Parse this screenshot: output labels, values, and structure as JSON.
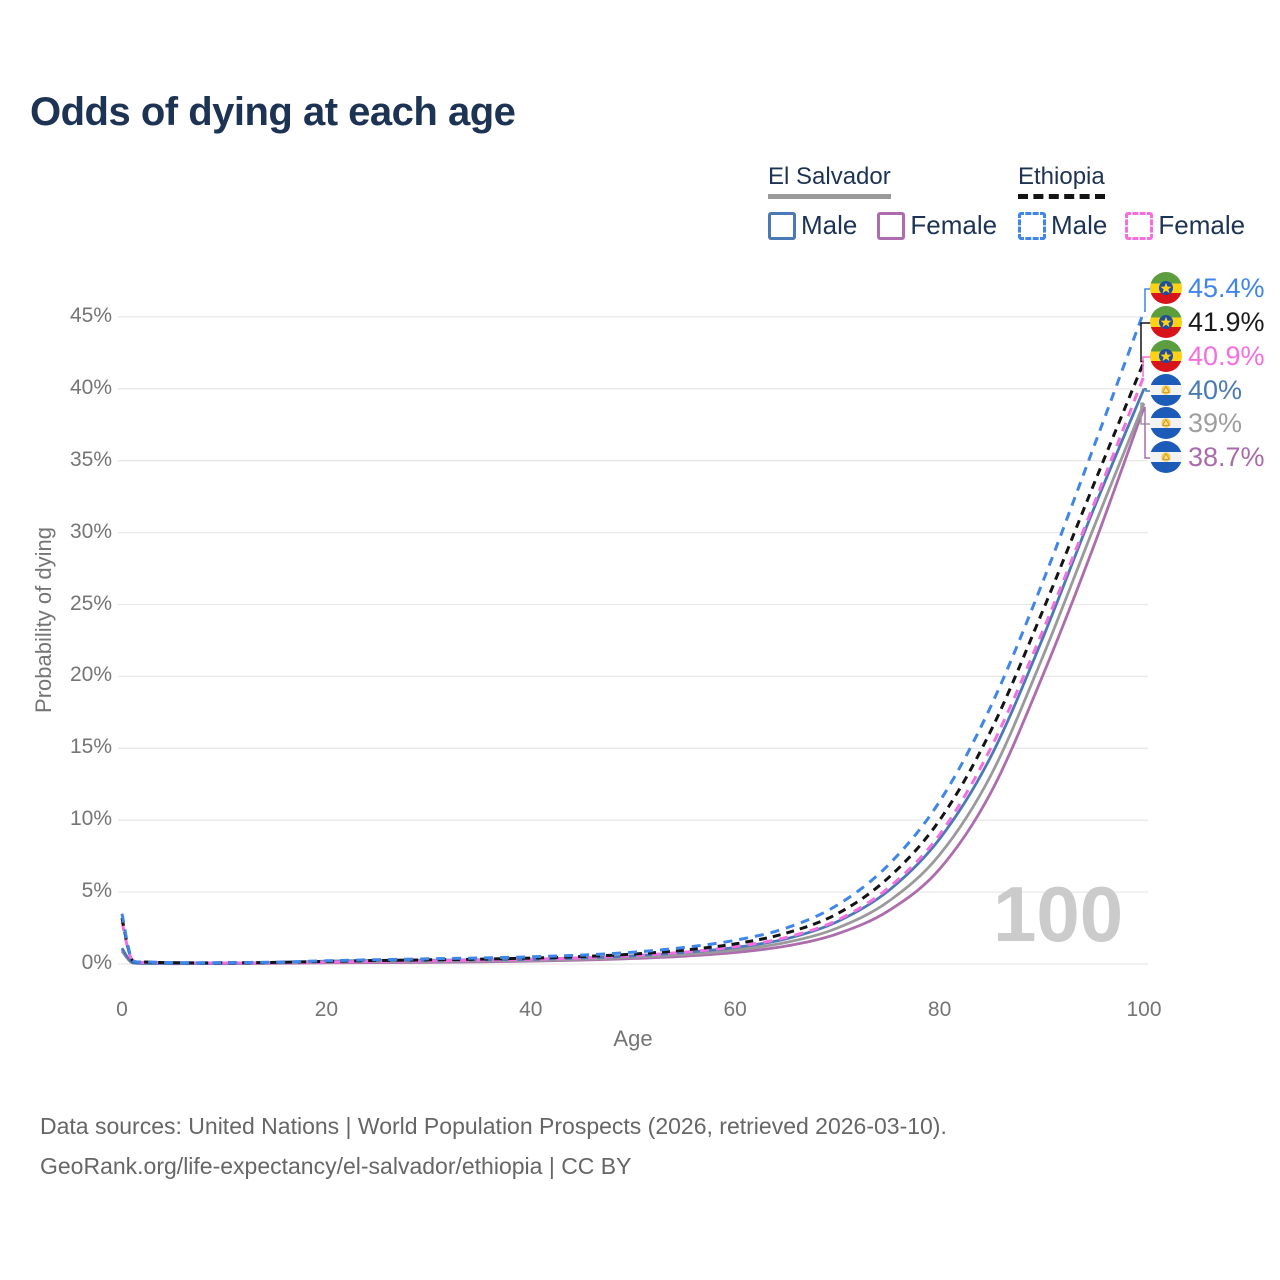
{
  "title": "Odds of dying at each age",
  "watermark": "100",
  "footer": {
    "line1": "Data sources: United Nations | World Population Prospects (2026, retrieved 2026-03-10).",
    "line2": "GeoRank.org/life-expectancy/el-salvador/ethiopia | CC BY"
  },
  "legend": {
    "groups": [
      {
        "title": "El Salvador",
        "line_style": "solid",
        "line_color": "#9a9a9a",
        "items": [
          {
            "label": "Male",
            "box_color": "#4a7ab5"
          },
          {
            "label": "Female",
            "box_color": "#ad6cad"
          }
        ]
      },
      {
        "title": "Ethiopia",
        "line_style": "dashed",
        "line_color": "#141414",
        "items": [
          {
            "label": "Male",
            "box_color": "#3f86e8"
          },
          {
            "label": "Female",
            "box_color": "#f56ee0"
          }
        ]
      }
    ]
  },
  "chart_data": {
    "type": "line",
    "title": "Odds of dying at each age",
    "xlabel": "Age",
    "ylabel": "Probability of dying",
    "xlim": [
      0,
      100
    ],
    "ylim": [
      0,
      45
    ],
    "grid": true,
    "xticks": [
      0,
      20,
      40,
      60,
      80,
      100
    ],
    "yticks": [
      0,
      5,
      10,
      15,
      20,
      25,
      30,
      35,
      40,
      45
    ],
    "ytick_suffix": "%",
    "series": [
      {
        "name": "Ethiopia Male",
        "country": "Ethiopia",
        "sex": "Male",
        "color": "#3f86e8",
        "dash": "9 7",
        "flag": "ethiopia",
        "end_value": 45.4,
        "end_label": "45.4%",
        "label_color": "#3f86e8",
        "points": [
          [
            0,
            3.5
          ],
          [
            1,
            0.28
          ],
          [
            2.5,
            0.15
          ],
          [
            5,
            0.1
          ],
          [
            10,
            0.09
          ],
          [
            15,
            0.13
          ],
          [
            20,
            0.22
          ],
          [
            25,
            0.3
          ],
          [
            30,
            0.36
          ],
          [
            35,
            0.42
          ],
          [
            40,
            0.5
          ],
          [
            45,
            0.62
          ],
          [
            50,
            0.82
          ],
          [
            55,
            1.15
          ],
          [
            60,
            1.65
          ],
          [
            65,
            2.5
          ],
          [
            70,
            4.1
          ],
          [
            75,
            6.9
          ],
          [
            80,
            11.3
          ],
          [
            85,
            17.9
          ],
          [
            90,
            26.4
          ],
          [
            95,
            35.8
          ],
          [
            100,
            45.4
          ]
        ]
      },
      {
        "name": "Ethiopia Both sexes",
        "country": "Ethiopia",
        "sex": "Both",
        "color": "#141414",
        "dash": "8 6",
        "flag": "ethiopia",
        "end_value": 41.9,
        "end_label": "41.9%",
        "label_color": "#1a1a1a",
        "points": [
          [
            0,
            3.2
          ],
          [
            1,
            0.26
          ],
          [
            2.5,
            0.13
          ],
          [
            5,
            0.09
          ],
          [
            10,
            0.08
          ],
          [
            15,
            0.11
          ],
          [
            20,
            0.18
          ],
          [
            25,
            0.24
          ],
          [
            30,
            0.29
          ],
          [
            35,
            0.34
          ],
          [
            40,
            0.41
          ],
          [
            45,
            0.52
          ],
          [
            50,
            0.69
          ],
          [
            55,
            0.97
          ],
          [
            60,
            1.4
          ],
          [
            65,
            2.15
          ],
          [
            70,
            3.5
          ],
          [
            75,
            6.0
          ],
          [
            80,
            10.0
          ],
          [
            85,
            16.2
          ],
          [
            90,
            24.4
          ],
          [
            95,
            33.2
          ],
          [
            100,
            41.9
          ]
        ]
      },
      {
        "name": "Ethiopia Female",
        "country": "Ethiopia",
        "sex": "Female",
        "color": "#f56ee0",
        "dash": "9 7",
        "flag": "ethiopia",
        "end_value": 40.9,
        "end_label": "40.9%",
        "label_color": "#f56ee0",
        "points": [
          [
            0,
            2.9
          ],
          [
            1,
            0.24
          ],
          [
            2.5,
            0.12
          ],
          [
            5,
            0.08
          ],
          [
            10,
            0.07
          ],
          [
            15,
            0.09
          ],
          [
            20,
            0.14
          ],
          [
            25,
            0.18
          ],
          [
            30,
            0.22
          ],
          [
            35,
            0.27
          ],
          [
            40,
            0.33
          ],
          [
            45,
            0.43
          ],
          [
            50,
            0.58
          ],
          [
            55,
            0.82
          ],
          [
            60,
            1.2
          ],
          [
            65,
            1.85
          ],
          [
            70,
            3.05
          ],
          [
            75,
            5.3
          ],
          [
            80,
            9.0
          ],
          [
            85,
            15.0
          ],
          [
            90,
            23.0
          ],
          [
            95,
            31.8
          ],
          [
            100,
            40.9
          ]
        ]
      },
      {
        "name": "El Salvador Male",
        "country": "El Salvador",
        "sex": "Male",
        "color": "#4a7ab5",
        "dash": null,
        "flag": "el-salvador",
        "end_value": 40.0,
        "end_label": "40%",
        "label_color": "#4a7ab5",
        "points": [
          [
            0,
            1.1
          ],
          [
            1,
            0.1
          ],
          [
            2.5,
            0.05
          ],
          [
            5,
            0.03
          ],
          [
            10,
            0.03
          ],
          [
            15,
            0.09
          ],
          [
            20,
            0.2
          ],
          [
            25,
            0.24
          ],
          [
            30,
            0.26
          ],
          [
            35,
            0.29
          ],
          [
            40,
            0.33
          ],
          [
            45,
            0.42
          ],
          [
            50,
            0.57
          ],
          [
            55,
            0.8
          ],
          [
            60,
            1.15
          ],
          [
            65,
            1.75
          ],
          [
            70,
            2.95
          ],
          [
            75,
            5.1
          ],
          [
            80,
            8.7
          ],
          [
            85,
            14.4
          ],
          [
            90,
            22.5
          ],
          [
            95,
            31.5
          ],
          [
            100,
            40.0
          ]
        ]
      },
      {
        "name": "El Salvador Both sexes",
        "country": "El Salvador",
        "sex": "Both",
        "color": "#9a9a9a",
        "dash": null,
        "flag": "el-salvador",
        "end_value": 39.0,
        "end_label": "39%",
        "label_color": "#9e9e9e",
        "points": [
          [
            0,
            1.0
          ],
          [
            1,
            0.09
          ],
          [
            2.5,
            0.04
          ],
          [
            5,
            0.025
          ],
          [
            10,
            0.025
          ],
          [
            15,
            0.07
          ],
          [
            20,
            0.14
          ],
          [
            25,
            0.17
          ],
          [
            30,
            0.19
          ],
          [
            35,
            0.22
          ],
          [
            40,
            0.26
          ],
          [
            45,
            0.34
          ],
          [
            50,
            0.47
          ],
          [
            55,
            0.66
          ],
          [
            60,
            0.97
          ],
          [
            65,
            1.5
          ],
          [
            70,
            2.5
          ],
          [
            75,
            4.35
          ],
          [
            80,
            7.6
          ],
          [
            85,
            13.1
          ],
          [
            90,
            21.2
          ],
          [
            95,
            30.2
          ],
          [
            100,
            39.0
          ]
        ]
      },
      {
        "name": "El Salvador Female",
        "country": "El Salvador",
        "sex": "Female",
        "color": "#ad6cad",
        "dash": null,
        "flag": "el-salvador",
        "end_value": 38.7,
        "end_label": "38.7%",
        "label_color": "#a96bab",
        "points": [
          [
            0,
            0.9
          ],
          [
            1,
            0.08
          ],
          [
            2.5,
            0.035
          ],
          [
            5,
            0.02
          ],
          [
            10,
            0.02
          ],
          [
            15,
            0.05
          ],
          [
            20,
            0.08
          ],
          [
            25,
            0.1
          ],
          [
            30,
            0.12
          ],
          [
            35,
            0.15
          ],
          [
            40,
            0.2
          ],
          [
            45,
            0.27
          ],
          [
            50,
            0.38
          ],
          [
            55,
            0.54
          ],
          [
            60,
            0.8
          ],
          [
            65,
            1.25
          ],
          [
            70,
            2.1
          ],
          [
            75,
            3.7
          ],
          [
            80,
            6.6
          ],
          [
            85,
            11.9
          ],
          [
            90,
            19.9
          ],
          [
            95,
            28.9
          ],
          [
            100,
            38.7
          ]
        ]
      }
    ]
  }
}
